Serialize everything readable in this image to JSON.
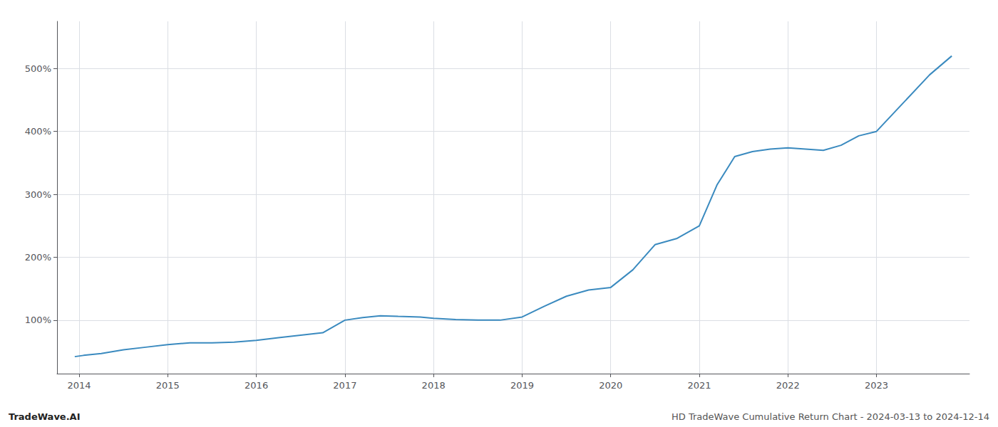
{
  "chart_data": {
    "type": "line",
    "x": [
      2013.95,
      2014.05,
      2014.25,
      2014.5,
      2014.75,
      2015.0,
      2015.25,
      2015.5,
      2015.75,
      2016.0,
      2016.25,
      2016.5,
      2016.75,
      2017.0,
      2017.2,
      2017.4,
      2017.6,
      2017.85,
      2018.0,
      2018.25,
      2018.5,
      2018.75,
      2019.0,
      2019.25,
      2019.5,
      2019.75,
      2020.0,
      2020.25,
      2020.5,
      2020.75,
      2021.0,
      2021.2,
      2021.4,
      2021.6,
      2021.8,
      2022.0,
      2022.2,
      2022.4,
      2022.6,
      2022.8,
      2023.0,
      2023.3,
      2023.6,
      2023.85
    ],
    "values": [
      42,
      44,
      47,
      53,
      57,
      61,
      64,
      64,
      65,
      68,
      72,
      76,
      80,
      100,
      104,
      107,
      106,
      105,
      103,
      101,
      100,
      100,
      105,
      122,
      138,
      148,
      152,
      180,
      220,
      230,
      250,
      315,
      360,
      368,
      372,
      374,
      372,
      370,
      378,
      393,
      400,
      445,
      490,
      520
    ],
    "color": "#3a8abf",
    "xlim": [
      2013.75,
      2024.05
    ],
    "ylim": [
      15,
      575
    ],
    "xticks": [
      2014,
      2015,
      2016,
      2017,
      2018,
      2019,
      2020,
      2021,
      2022,
      2023
    ],
    "yticks": [
      {
        "value": 100,
        "label": "100%"
      },
      {
        "value": 200,
        "label": "200%"
      },
      {
        "value": 300,
        "label": "300%"
      },
      {
        "value": 400,
        "label": "400%"
      },
      {
        "value": 500,
        "label": "500%"
      }
    ],
    "grid": true,
    "annotations": [
      "TradeWave.AI",
      "HD TradeWave Cumulative Return Chart - 2024-03-13 to 2024-12-14"
    ]
  }
}
